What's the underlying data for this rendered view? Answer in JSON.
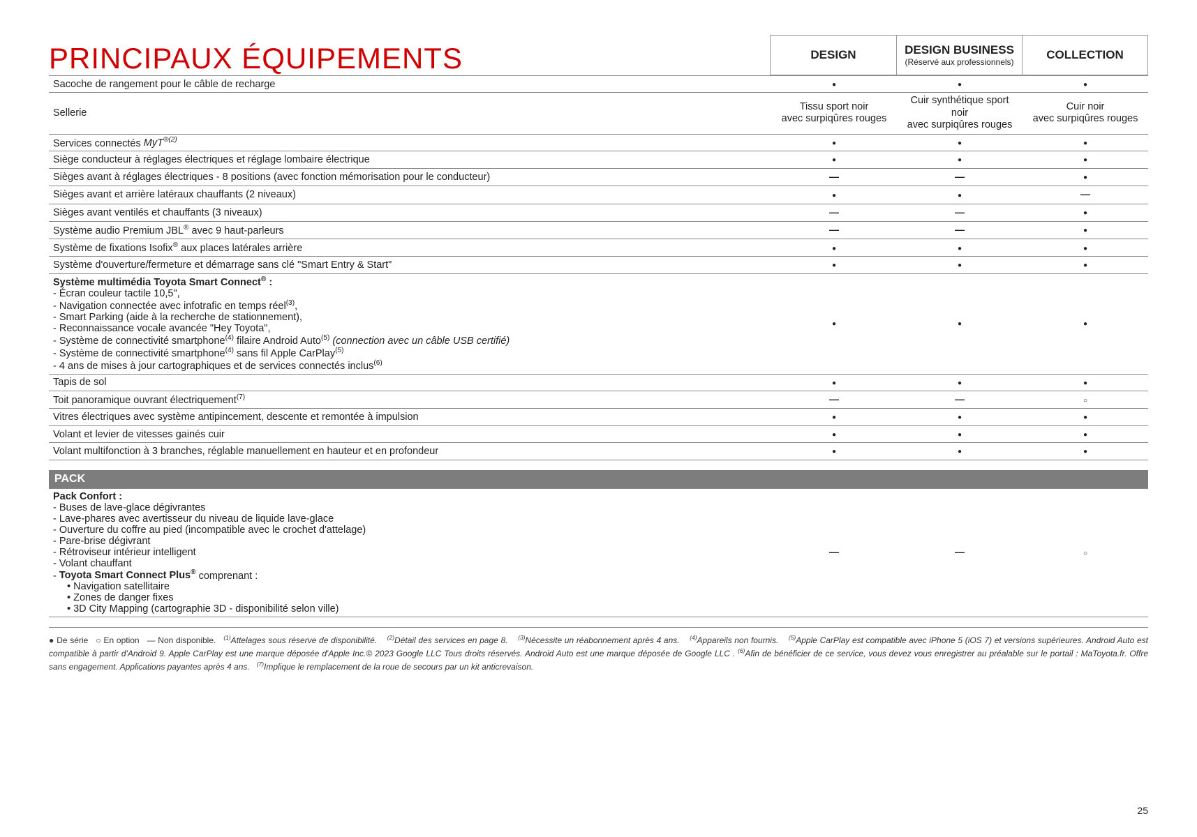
{
  "title": "PRINCIPAUX ÉQUIPEMENTS",
  "trims": [
    {
      "name": "DESIGN",
      "sub": ""
    },
    {
      "name": "DESIGN BUSINESS",
      "sub": "(Réservé aux professionnels)"
    },
    {
      "name": "COLLECTION",
      "sub": ""
    }
  ],
  "rows": [
    {
      "feat": "Sacoche de rangement pour le câble de recharge",
      "v": [
        "dot",
        "dot",
        "dot"
      ]
    },
    {
      "feat": "Sellerie",
      "v": [
        "Tissu sport noir\navec surpiqûres rouges",
        "Cuir synthétique sport noir\navec surpiqûres rouges",
        "Cuir noir\navec surpiqûres rouges"
      ],
      "text": true
    },
    {
      "feat": "Services connectés <em class=\"ital\">MyT<sup>®(2)</sup></em>",
      "html": true,
      "v": [
        "dot",
        "dot",
        "dot"
      ]
    },
    {
      "feat": "Siège conducteur à réglages électriques et réglage lombaire électrique",
      "v": [
        "dot",
        "dot",
        "dot"
      ]
    },
    {
      "feat": "Sièges avant à réglages électriques - 8 positions (avec fonction mémorisation pour le conducteur)",
      "v": [
        "dash",
        "dash",
        "dot"
      ]
    },
    {
      "feat": "Sièges avant et arrière latéraux chauffants (2 niveaux)",
      "v": [
        "dot",
        "dot",
        "dash"
      ]
    },
    {
      "feat": "Sièges avant ventilés et chauffants (3 niveaux)",
      "v": [
        "dash",
        "dash",
        "dot"
      ]
    },
    {
      "feat": "Système audio Premium JBL<sup>®</sup> avec 9 haut-parleurs",
      "html": true,
      "v": [
        "dash",
        "dash",
        "dot"
      ]
    },
    {
      "feat": "Système de fixations Isofix<sup>®</sup> aux places latérales arrière",
      "html": true,
      "v": [
        "dot",
        "dot",
        "dot"
      ]
    },
    {
      "feat": "Système d'ouverture/fermeture et démarrage sans clé \"Smart Entry & Start\"",
      "v": [
        "dot",
        "dot",
        "dot"
      ]
    },
    {
      "feat_block": {
        "title": "Système multimédia Toyota Smart Connect<sup>®</sup> :",
        "lines": [
          "- Écran couleur tactile 10,5\",",
          "- Navigation connectée avec infotrafic en temps réel<sup>(3)</sup>,",
          "- Smart Parking (aide à la recherche de stationnement),",
          "- Reconnaissance vocale avancée \"Hey Toyota\",",
          "- Système de connectivité smartphone<sup>(4)</sup> filaire Android Auto<sup>(5)</sup> <em class=\"ital\">(connection avec un câble USB certifié)</em>",
          "- Système de connectivité smartphone<sup>(4)</sup> sans fil Apple CarPlay<sup>(5)</sup>",
          "- 4 ans de mises à jour cartographiques et de services connectés inclus<sup>(6)</sup>"
        ]
      },
      "v": [
        "dot",
        "dot",
        "dot"
      ]
    },
    {
      "feat": "Tapis de sol",
      "v": [
        "dot",
        "dot",
        "dot"
      ]
    },
    {
      "feat": "Toit panoramique ouvrant électriquement<sup>(7)</sup>",
      "html": true,
      "v": [
        "dash",
        "dash",
        "opt"
      ]
    },
    {
      "feat": "Vitres électriques avec système antipincement, descente et remontée à impulsion",
      "v": [
        "dot",
        "dot",
        "dot"
      ]
    },
    {
      "feat": "Volant et levier de vitesses gainés cuir",
      "v": [
        "dot",
        "dot",
        "dot"
      ]
    },
    {
      "feat": "Volant multifonction à 3 branches, réglable manuellement en hauteur et en profondeur",
      "v": [
        "dot",
        "dot",
        "dot"
      ]
    }
  ],
  "section_bar": "PACK",
  "pack_rows": [
    {
      "feat_block": {
        "title": "Pack Confort :",
        "lines": [
          "- Buses de lave-glace dégivrantes",
          "- Lave-phares avec avertisseur du niveau de liquide lave-glace",
          "- Ouverture du coffre au pied (incompatible avec le crochet d'attelage)",
          "- Pare-brise dégivrant",
          "- Rétroviseur intérieur intelligent",
          "- Volant chauffant",
          "- <span class=\"feat-title\">Toyota Smart Connect Plus<sup>®</sup></span> comprenant :"
        ],
        "sublines": [
          "• Navigation satellitaire",
          "• Zones de danger fixes",
          "• 3D City Mapping (cartographie 3D - disponibilité selon ville)"
        ]
      },
      "v": [
        "dash",
        "dash",
        "opt"
      ]
    }
  ],
  "legend": {
    "symbols": "● De série &nbsp; ○ En option &nbsp; — Non disponible.",
    "notes": "&nbsp;&nbsp;&nbsp;<sup>(1)</sup>Attelages sous réserve de disponibilité. &nbsp;&nbsp; <sup>(2)</sup>Détail des services en page 8. &nbsp;&nbsp; <sup>(3)</sup>Nécessite un réabonnement après 4 ans. &nbsp;&nbsp; <sup>(4)</sup>Appareils non fournis. &nbsp;&nbsp; <sup>(5)</sup>Apple CarPlay est compatible avec iPhone 5 (iOS 7) et versions supérieures. Android Auto est compatible à partir d'Android 9. Apple CarPlay est une marque déposée d'Apple Inc.© 2023 Google LLC Tous droits réservés. Android Auto est une marque déposée de Google LLC . <sup>(6)</sup>Afin de bénéficier de ce service, vous devez vous enregistrer au préalable sur le portail : MaToyota.fr. Offre sans engagement. Applications payantes après 4 ans. &nbsp; <sup>(7)</sup>Implique le remplacement de la roue de secours par un kit anticrevaison."
  },
  "page_number": "25",
  "colors": {
    "title": "#d00000",
    "border": "#888888",
    "section_bg": "#7d7d7d",
    "text": "#222222"
  }
}
